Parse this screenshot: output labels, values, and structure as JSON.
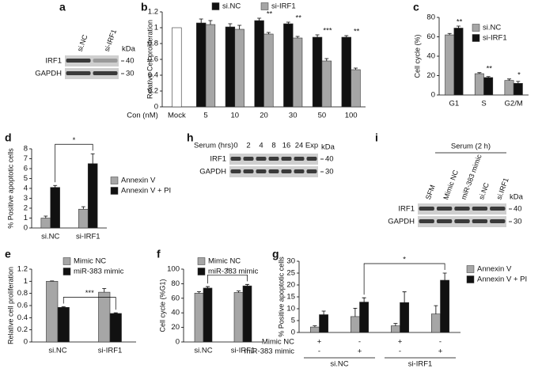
{
  "chart_data": [
    {
      "panel": "b",
      "type": "bar",
      "y_label": "Relative Cell proliferation",
      "x_label": "Con (nM)",
      "categories": [
        "Mock",
        "5",
        "10",
        "20",
        "30",
        "50",
        "100"
      ],
      "series": [
        {
          "color": "#ffffff",
          "values": [
            1,
            null,
            null,
            null,
            null,
            null,
            null
          ]
        },
        {
          "name": "si.NC",
          "color": "#111111",
          "values": [
            null,
            1.06,
            1.01,
            1.09,
            1.05,
            0.88,
            0.88
          ],
          "errors": [
            null,
            0.05,
            0.04,
            0.03,
            0.02,
            0.03,
            0.02
          ]
        },
        {
          "name": "si-IRF1",
          "color": "#a6a6a6",
          "values": [
            null,
            1.04,
            0.98,
            0.92,
            0.87,
            0.58,
            0.47
          ],
          "errors": [
            null,
            0.05,
            0.05,
            0.02,
            0.02,
            0.03,
            0.02
          ]
        }
      ],
      "significance": [
        null,
        null,
        null,
        "**",
        "**",
        "***",
        "**"
      ],
      "ylim": [
        0,
        1.2
      ],
      "yticks": [
        0,
        0.2,
        0.4,
        0.6,
        0.8,
        1,
        1.2
      ]
    },
    {
      "panel": "c",
      "type": "bar",
      "y_label": "Cell cycle (%)",
      "categories": [
        "G1",
        "S",
        "G2/M"
      ],
      "series": [
        {
          "name": "si.NC",
          "color": "#a6a6a6",
          "values": [
            62,
            22,
            15
          ],
          "errors": [
            1.5,
            1,
            1.5
          ]
        },
        {
          "name": "si-IRF1",
          "color": "#111111",
          "values": [
            69,
            18,
            12
          ],
          "errors": [
            2,
            1,
            2
          ]
        }
      ],
      "significance": [
        "**",
        "**",
        "*"
      ],
      "ylim": [
        0,
        80
      ],
      "yticks": [
        0,
        20,
        40,
        60,
        80
      ]
    },
    {
      "panel": "d",
      "type": "bar",
      "y_label": "% Positive apoptotic cells",
      "categories": [
        "si.NC",
        "si-IRF1"
      ],
      "series": [
        {
          "name": "Annexin V",
          "color": "#a6a6a6",
          "values": [
            1.0,
            1.9
          ],
          "errors": [
            0.2,
            0.25
          ]
        },
        {
          "name": "Annexin V + PI",
          "color": "#111111",
          "values": [
            4.1,
            6.5
          ],
          "errors": [
            0.2,
            1.0
          ]
        }
      ],
      "bracket": "*",
      "ylim": [
        0,
        8
      ],
      "yticks": [
        0,
        1,
        2,
        3,
        4,
        5,
        6,
        7,
        8
      ]
    },
    {
      "panel": "e",
      "type": "bar",
      "y_label": "Relative cell proliferation",
      "categories": [
        "si.NC",
        "si-IRF1"
      ],
      "series": [
        {
          "name": "Mimic NC",
          "color": "#a6a6a6",
          "values": [
            1.0,
            0.82
          ],
          "errors": [
            0.005,
            0.06
          ]
        },
        {
          "name": "miR-383 mimic",
          "color": "#111111",
          "values": [
            0.57,
            0.47
          ],
          "errors": [
            0.01,
            0.01
          ]
        }
      ],
      "bracket": "***",
      "ylim": [
        0,
        1.2
      ],
      "yticks": [
        0,
        0.2,
        0.4,
        0.6,
        0.8,
        1,
        1.2
      ]
    },
    {
      "panel": "f",
      "type": "bar",
      "y_label": "Cell cycle (%G1)",
      "categories": [
        "si.NC",
        "si-IRF1"
      ],
      "series": [
        {
          "name": "Mimic NC",
          "color": "#a6a6a6",
          "values": [
            67,
            68
          ],
          "errors": [
            2,
            2
          ]
        },
        {
          "name": "miR-383 mimic",
          "color": "#111111",
          "values": [
            74,
            77
          ],
          "errors": [
            2,
            2
          ]
        }
      ],
      "bracket": "*",
      "ylim": [
        0,
        100
      ],
      "yticks": [
        0,
        20,
        40,
        60,
        80,
        100
      ]
    },
    {
      "panel": "g",
      "type": "bar",
      "y_label": "% Positive apoptotic cells",
      "categories": [
        null,
        null,
        null,
        null
      ],
      "series": [
        {
          "name": "Annexin V",
          "color": "#a6a6a6",
          "values": [
            2.3,
            6.7,
            2.8,
            7.8
          ],
          "errors": [
            0.5,
            3.5,
            1,
            3.5
          ]
        },
        {
          "name": "Annexin V + PI",
          "color": "#111111",
          "values": [
            7.5,
            12.8,
            12.6,
            22
          ],
          "errors": [
            1.5,
            1.8,
            4.5,
            3
          ]
        }
      ],
      "conditions": [
        {
          "name": "Mimic NC",
          "values": [
            "+",
            "-",
            "+",
            "-"
          ]
        },
        {
          "name": "miR-383 mimic",
          "values": [
            "-",
            "+",
            "-",
            "+"
          ]
        }
      ],
      "groups": [
        "si.NC",
        "si-IRF1"
      ],
      "bracket": "*",
      "ylim": [
        0,
        30
      ],
      "yticks": [
        0,
        5,
        10,
        15,
        20,
        25,
        30
      ]
    }
  ],
  "blots": [
    {
      "panel": "a",
      "lanes": [
        "si.NC",
        "si-IRF1"
      ],
      "rows": [
        "IRF1",
        "GAPDH"
      ],
      "unit": "kDa",
      "markers": [
        "40",
        "30"
      ]
    },
    {
      "panel": "h",
      "title": "Serum (hrs)",
      "lanes": [
        "0",
        "2",
        "4",
        "8",
        "16",
        "24",
        "Exp"
      ],
      "rows": [
        "IRF1",
        "GAPDH"
      ],
      "unit": "kDa",
      "markers": [
        "40",
        "30"
      ]
    },
    {
      "panel": "i",
      "title": "Serum (2 h)",
      "lanes": [
        "SFM",
        "Mimic NC",
        "miR-383 mimic",
        "si.NC",
        "si.IRF1"
      ],
      "rows": [
        "IRF1",
        "GAPDH"
      ],
      "unit": "kDa",
      "markers": [
        "40",
        "30"
      ]
    }
  ]
}
